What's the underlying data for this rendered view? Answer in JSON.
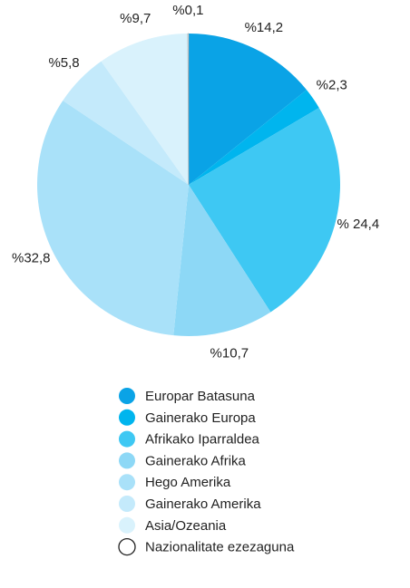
{
  "chart_data": {
    "type": "pie",
    "categories": [
      "Europar Batasuna",
      "Gainerako Europa",
      "Afrikako Iparraldea",
      "Gainerako Afrika",
      "Hego Amerika",
      "Gainerako Amerika",
      "Asia/Ozeania",
      "Nazionalitate ezezaguna"
    ],
    "values": [
      14.2,
      2.3,
      24.4,
      10.7,
      32.8,
      5.8,
      9.7,
      0.1
    ],
    "value_labels": [
      "%14,2",
      "%2,3",
      "% 24,4",
      "%10,7",
      "%32,8",
      "%5,8",
      "%9,7",
      "%0,1"
    ],
    "colors": [
      "#0aa3e6",
      "#00b5ee",
      "#3ec8f3",
      "#8dd8f6",
      "#a9e1f9",
      "#c4eafb",
      "#d9f2fc",
      "#ffffff"
    ],
    "legend": "bottom"
  }
}
